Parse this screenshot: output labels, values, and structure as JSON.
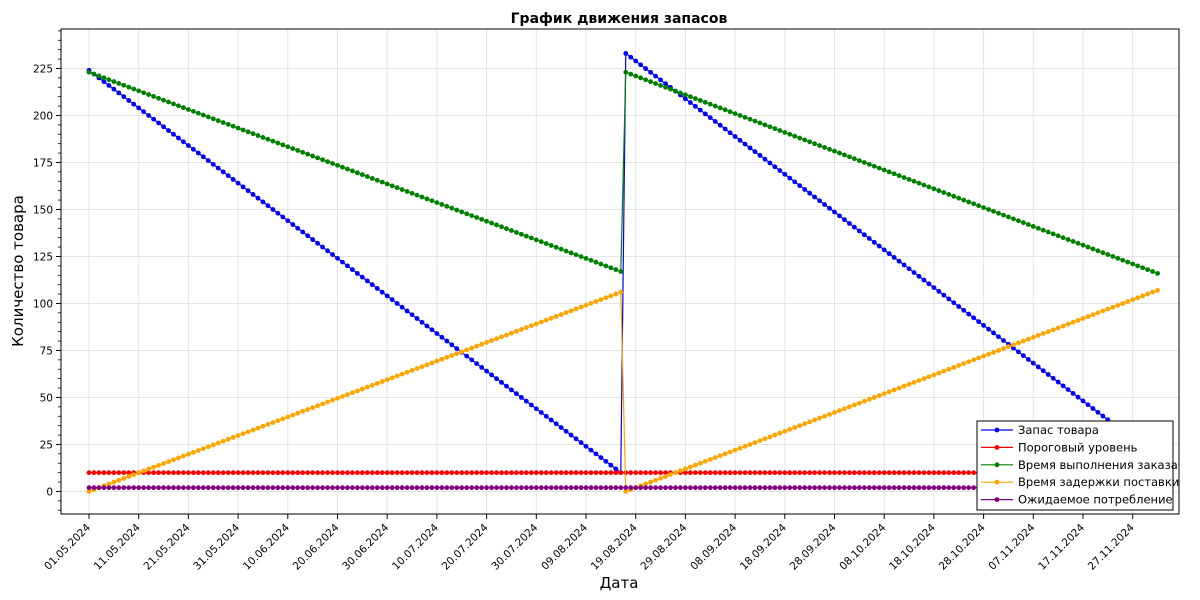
{
  "chart_data": {
    "type": "line",
    "title": "График движения запасов",
    "xlabel": "Дата",
    "ylabel": "Количество товара",
    "x_type": "date",
    "x_start": "2024-05-01",
    "x_end": "2024-12-04",
    "ylim": [
      -12,
      246
    ],
    "yticks": [
      0,
      25,
      50,
      75,
      100,
      125,
      150,
      175,
      200,
      225
    ],
    "xticks": [
      "01.05.2024",
      "11.05.2024",
      "21.05.2024",
      "31.05.2024",
      "10.06.2024",
      "20.06.2024",
      "30.06.2024",
      "10.07.2024",
      "20.07.2024",
      "30.07.2024",
      "09.08.2024",
      "19.08.2024",
      "29.08.2024",
      "08.09.2024",
      "18.09.2024",
      "28.09.2024",
      "08.10.2024",
      "18.10.2024",
      "28.10.2024",
      "07.11.2024",
      "17.11.2024",
      "27.11.2024"
    ],
    "grid": true,
    "legend_position": "bottom-right",
    "series": [
      {
        "name": "Запас товара",
        "color": "#0000ff",
        "points": [
          [
            "2024-05-01",
            224
          ],
          [
            "2024-08-16",
            10
          ],
          [
            "2024-08-17",
            233
          ],
          [
            "2024-12-02",
            18
          ]
        ]
      },
      {
        "name": "Пороговый уровень",
        "color": "#ff0000",
        "points": [
          [
            "2024-05-01",
            10
          ],
          [
            "2024-12-02",
            10
          ]
        ]
      },
      {
        "name": "Время выполнения заказа",
        "color": "#008000",
        "points": [
          [
            "2024-05-01",
            223
          ],
          [
            "2024-08-16",
            117
          ],
          [
            "2024-08-17",
            223
          ],
          [
            "2024-12-02",
            116
          ]
        ]
      },
      {
        "name": "Время задержки поставки",
        "color": "#ffa500",
        "points": [
          [
            "2024-05-01",
            0
          ],
          [
            "2024-08-16",
            106
          ],
          [
            "2024-08-17",
            0
          ],
          [
            "2024-12-02",
            107
          ]
        ]
      },
      {
        "name": "Ожидаемое потребление",
        "color": "#800080",
        "points": [
          [
            "2024-05-01",
            2
          ],
          [
            "2024-12-02",
            2
          ]
        ]
      }
    ]
  }
}
